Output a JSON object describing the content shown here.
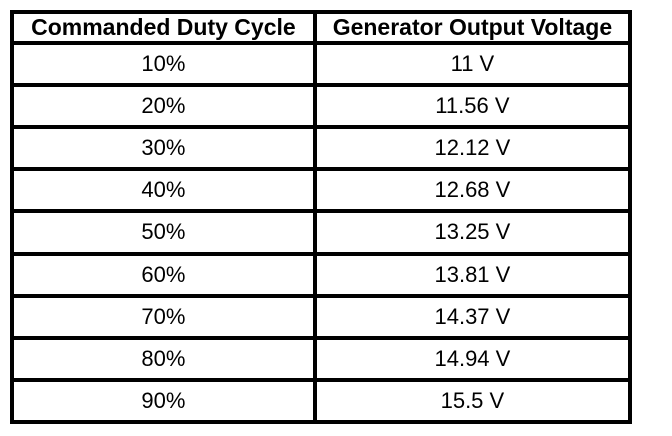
{
  "colors": {
    "border": "#000000",
    "background": "#ffffff",
    "text": "#000000"
  },
  "chart_data": {
    "type": "table",
    "columns": [
      "Commanded Duty Cycle",
      "Generator Output Voltage"
    ],
    "rows": [
      [
        "10%",
        "11 V"
      ],
      [
        "20%",
        "11.56 V"
      ],
      [
        "30%",
        "12.12 V"
      ],
      [
        "40%",
        "12.68 V"
      ],
      [
        "50%",
        "13.25 V"
      ],
      [
        "60%",
        "13.81 V"
      ],
      [
        "70%",
        "14.37 V"
      ],
      [
        "80%",
        "14.94 V"
      ],
      [
        "90%",
        "15.5 V"
      ]
    ],
    "duty_cycle_percent": [
      10,
      20,
      30,
      40,
      50,
      60,
      70,
      80,
      90
    ],
    "generator_output_voltage_v": [
      11,
      11.56,
      12.12,
      12.68,
      13.25,
      13.81,
      14.37,
      14.94,
      15.5
    ]
  }
}
